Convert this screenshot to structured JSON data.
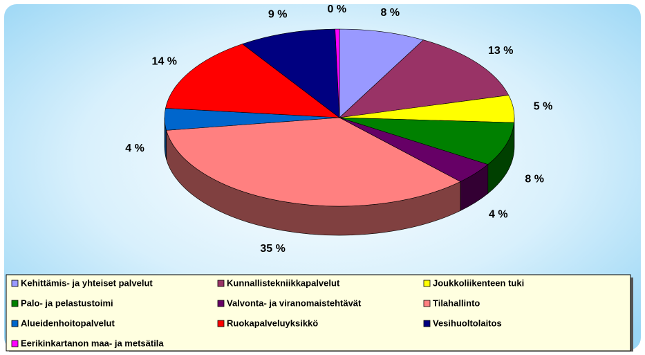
{
  "chart_data": {
    "type": "pie3d",
    "categories": [
      "Kehittämis- ja yhteiset palvelut",
      "Kunnallistekniikkapalvelut",
      "Joukkoliikenteen tuki",
      "Palo- ja pelastustoimi",
      "Valvonta- ja viranomaistehtävät",
      "Tilahallinto",
      "Alueidenhoitopalvelut",
      "Ruokapalveluyksikkö",
      "Vesihuoltolaitos",
      "Eerikinkartanon maa- ja metsätila"
    ],
    "values": [
      8,
      13,
      5,
      8,
      4,
      35,
      4,
      14,
      9,
      0.4
    ],
    "value_labels": [
      "8 %",
      "13 %",
      "5 %",
      "8 %",
      "4 %",
      "35 %",
      "4 %",
      "14 %",
      "9 %",
      "0 %"
    ],
    "colors": [
      "#9999FF",
      "#993366",
      "#FFFF00",
      "#008000",
      "#660066",
      "#FF8080",
      "#0066CC",
      "#FF0000",
      "#000080",
      "#FF00FF"
    ],
    "legend": "bottom"
  }
}
